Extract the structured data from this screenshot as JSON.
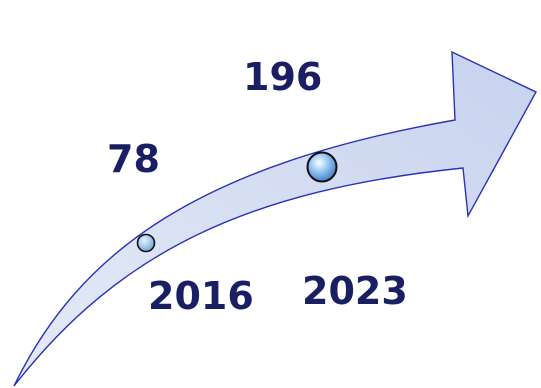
{
  "arrow": {
    "fill": "#cfd8ef",
    "stroke": "#2a33b8"
  },
  "points": [
    {
      "value": "78",
      "year": "2016"
    },
    {
      "value": "196",
      "year": "2023"
    }
  ],
  "text_color": "#1a1f63"
}
